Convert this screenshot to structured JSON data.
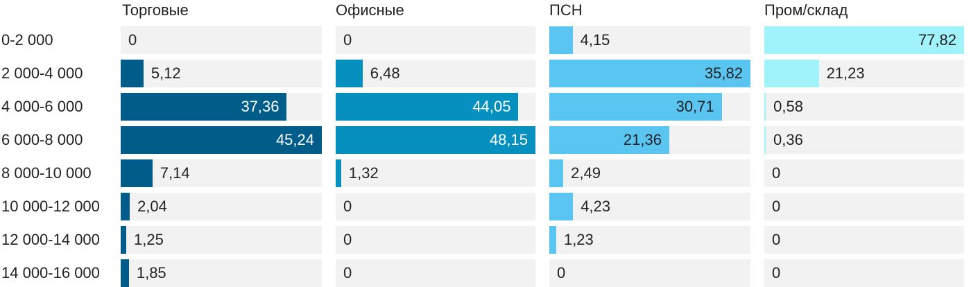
{
  "chart_data": {
    "type": "bar",
    "orientation": "horizontal",
    "layout": "small-multiples",
    "categories": [
      "0-2 000",
      "2 000-4 000",
      "4 000-6 000",
      "6 000-8 000",
      "8 000-10 000",
      "10 000-12 000",
      "12 000-14 000",
      "14 000-16 000"
    ],
    "series": [
      {
        "name": "Торговые",
        "color": "#005d89",
        "values": [
          0,
          5.12,
          37.36,
          45.24,
          7.14,
          2.04,
          1.25,
          1.85
        ],
        "labels": [
          "0",
          "5,12",
          "37,36",
          "45,24",
          "7,14",
          "2,04",
          "1,25",
          "1,85"
        ]
      },
      {
        "name": "Офисные",
        "color": "#0590bf",
        "values": [
          0,
          6.48,
          44.05,
          48.15,
          1.32,
          0,
          0,
          0
        ],
        "labels": [
          "0",
          "6,48",
          "44,05",
          "48,15",
          "1,32",
          "0",
          "0",
          "0"
        ]
      },
      {
        "name": "ПСН",
        "color": "#5bc5f2",
        "values": [
          4.15,
          35.82,
          30.71,
          21.36,
          2.49,
          4.23,
          1.23,
          0
        ],
        "labels": [
          "4,15",
          "35,82",
          "30,71",
          "21,36",
          "2,49",
          "4,23",
          "1,23",
          "0"
        ]
      },
      {
        "name": "Пром/склад",
        "color": "#a1f3fb",
        "values": [
          77.82,
          21.23,
          0.58,
          0.36,
          0,
          0,
          0,
          0
        ],
        "labels": [
          "77,82",
          "21,23",
          "0,58",
          "0,36",
          "0",
          "0",
          "0",
          "0"
        ]
      }
    ],
    "grid": false,
    "legend": "none"
  }
}
